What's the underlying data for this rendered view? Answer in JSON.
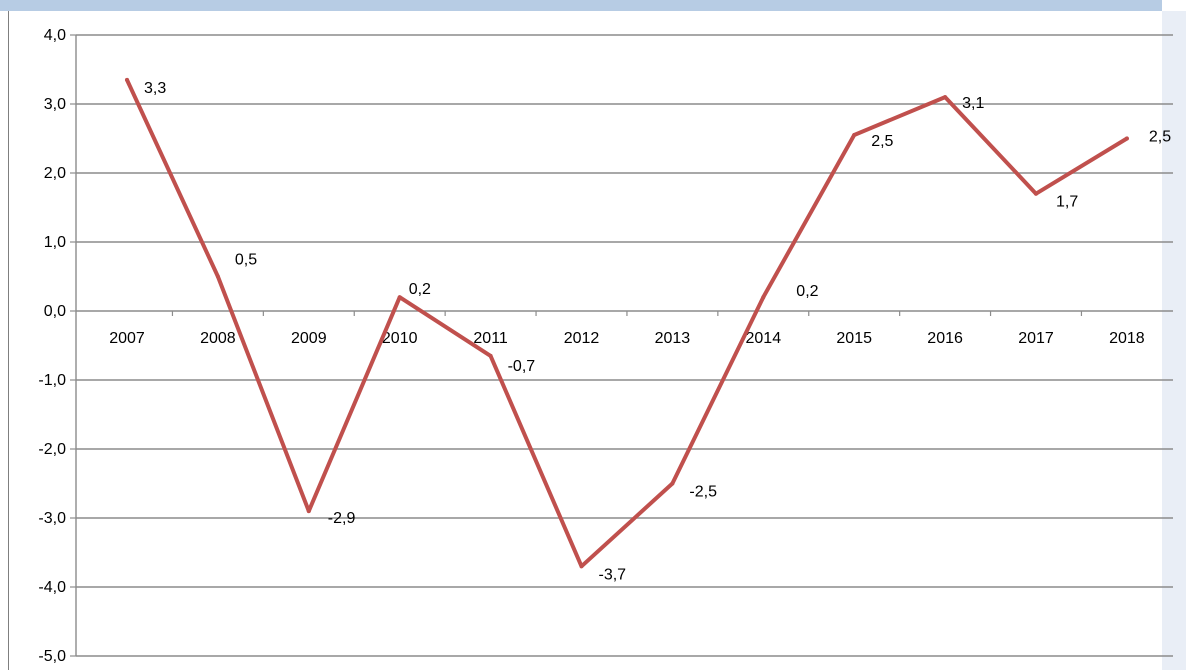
{
  "chart_data": {
    "type": "line",
    "categories": [
      "2007",
      "2008",
      "2009",
      "2010",
      "2011",
      "2012",
      "2013",
      "2014",
      "2015",
      "2016",
      "2017",
      "2018"
    ],
    "series": [
      {
        "values": [
          3.35,
          0.5,
          -2.9,
          0.2,
          -0.65,
          -3.7,
          -2.5,
          0.2,
          2.55,
          3.1,
          1.7,
          2.5
        ],
        "labels": [
          "3,3",
          "0,5",
          "-2,9",
          "0,2",
          "-0,7",
          "-3,7",
          "-2,5",
          "0,2",
          "2,5",
          "3,1",
          "1,7",
          "2,5"
        ],
        "color": "#c0504d"
      }
    ],
    "y_ticks": [
      "4,0",
      "3,0",
      "2,0",
      "1,0",
      "0,0",
      "-1,0",
      "-2,0",
      "-3,0",
      "-4,0",
      "-5,0"
    ],
    "ylim": [
      -5,
      4
    ],
    "grid": true,
    "title": "",
    "xlabel": "",
    "ylabel": ""
  },
  "colors": {
    "top_bar": "#b7cce4",
    "grid": "#8c8c8c",
    "line": "#c0504d"
  }
}
